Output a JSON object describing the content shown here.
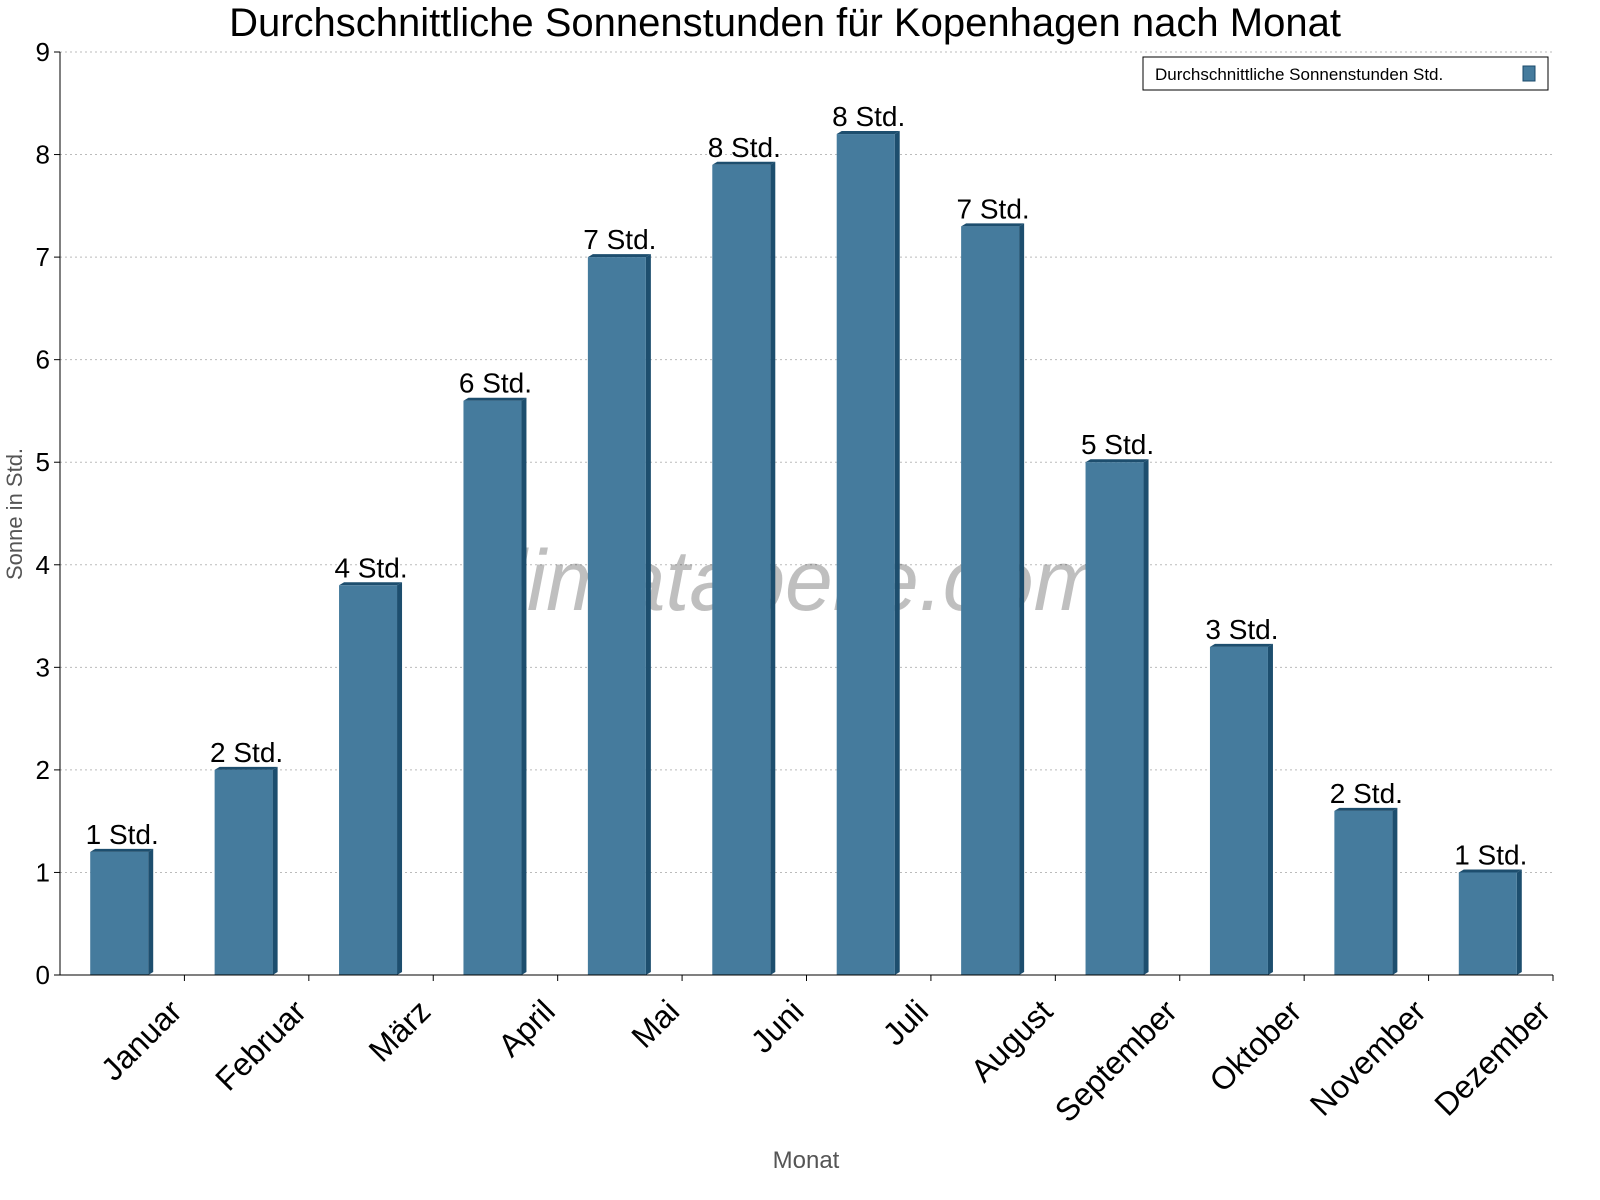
{
  "chart_data": {
    "type": "bar",
    "title": "Durchschnittliche Sonnenstunden für Kopenhagen nach Monat",
    "xlabel": "Monat",
    "ylabel": "Sonne in Std.",
    "ylim": [
      0,
      9
    ],
    "yticks": [
      "0",
      "1",
      "2",
      "3",
      "4",
      "5",
      "6",
      "7",
      "8",
      "9"
    ],
    "grid": true,
    "legend_position": "top-right",
    "categories": [
      "Januar",
      "Februar",
      "März",
      "April",
      "Mai",
      "Juni",
      "Juli",
      "August",
      "September",
      "Oktober",
      "November",
      "Dezember"
    ],
    "series": [
      {
        "name": "Durchschnittliche Sonnenstunden Std.",
        "color": "#457b9d",
        "values": [
          1.2,
          2.0,
          3.8,
          5.6,
          7.0,
          7.9,
          8.2,
          7.3,
          5.0,
          3.2,
          1.6,
          1.0
        ],
        "data_labels": [
          "1 Std.",
          "2 Std.",
          "4 Std.",
          "6 Std.",
          "7 Std.",
          "8 Std.",
          "8 Std.",
          "7 Std.",
          "5 Std.",
          "3 Std.",
          "2 Std.",
          "1 Std."
        ]
      }
    ],
    "watermark": "klimatabelle.com"
  }
}
